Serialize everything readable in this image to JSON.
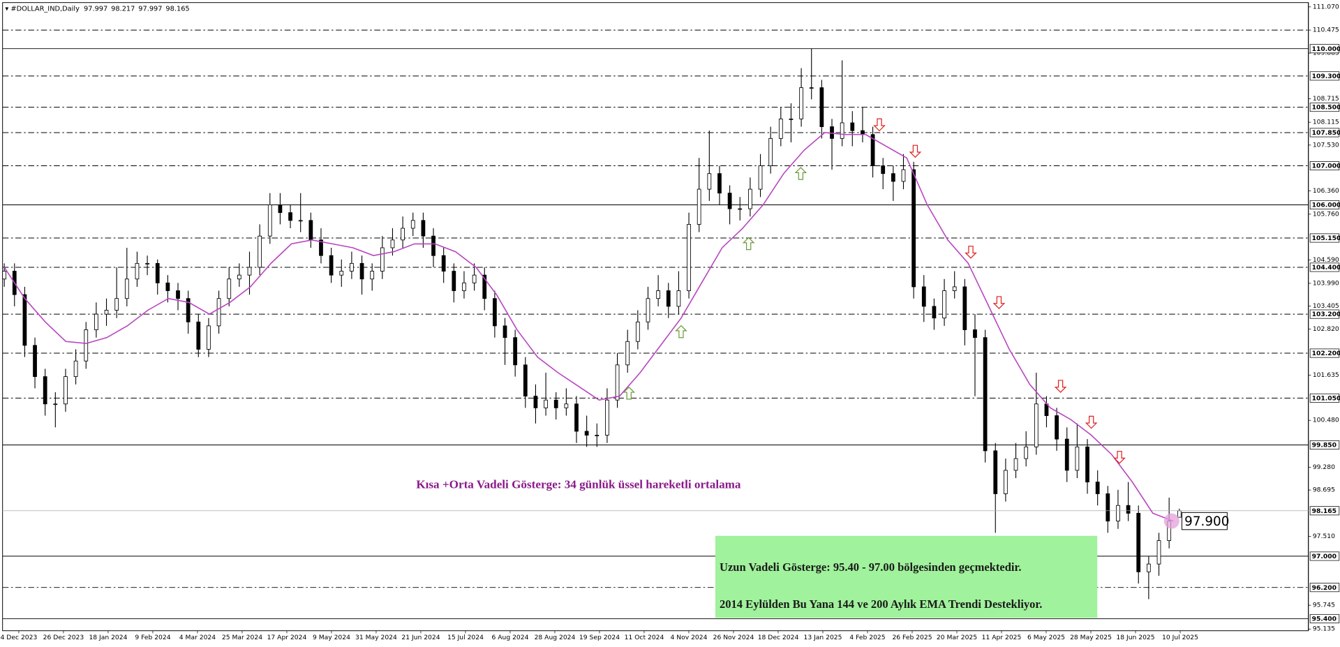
{
  "symbol": "#DOLLAR_IND,Daily",
  "chart_data": {
    "type": "candlestick",
    "ylim": [
      95.135,
      111.07
    ],
    "yticks": [
      {
        "value": 111.07,
        "label": "111.070"
      },
      110.475,
      109.885,
      108.715,
      108.115,
      {
        "value": 107.53,
        "label": "107.530"
      },
      {
        "value": 106.36,
        "label": "106.360"
      },
      {
        "value": 105.76,
        "label": "105.760"
      },
      {
        "value": 104.59,
        "label": "104.590"
      },
      {
        "value": 103.99,
        "label": "103.990"
      },
      103.405,
      {
        "value": 102.82,
        "label": "102.820"
      },
      101.635,
      {
        "value": 100.48,
        "label": "100.480"
      },
      {
        "value": 99.28,
        "label": "99.280"
      },
      98.695,
      {
        "value": 97.51,
        "label": "97.510"
      },
      95.745,
      95.135
    ],
    "levels": [
      {
        "value": 110.475,
        "style": "dashed"
      },
      {
        "value": 110,
        "label": "110.000",
        "style": "solid"
      },
      {
        "value": 109.3,
        "label": "109.300",
        "style": "dashed"
      },
      {
        "value": 108.5,
        "label": "108.500",
        "style": "dashed"
      },
      {
        "value": 107.85,
        "label": "107.850",
        "style": "dashed"
      },
      {
        "value": 107,
        "label": "107.000",
        "style": "dashed"
      },
      {
        "value": 106,
        "label": "106.000",
        "style": "solid"
      },
      {
        "value": 105.15,
        "label": "105.150",
        "style": "dashed"
      },
      {
        "value": 104.4,
        "label": "104.400",
        "style": "dashed"
      },
      {
        "value": 103.2,
        "label": "103.200",
        "style": "dashed"
      },
      {
        "value": 102.2,
        "label": "102.200",
        "style": "dashed"
      },
      {
        "value": 101.05,
        "label": "101.050",
        "style": "dashed"
      },
      {
        "value": 99.85,
        "label": "99.850",
        "style": "solid"
      },
      {
        "value": 97,
        "label": "97.000",
        "style": "solid"
      },
      {
        "value": 96.2,
        "label": "96.200",
        "style": "dashed"
      },
      {
        "value": 95.4,
        "label": "95.400",
        "style": "solid"
      }
    ],
    "x_labels": [
      "4 Dec 2023",
      "26 Dec 2023",
      "18 Jan 2024",
      "9 Feb 2024",
      "4 Mar 2024",
      "25 Mar 2024",
      "17 Apr 2024",
      "9 May 2024",
      "31 May 2024",
      "21 Jun 2024",
      "15 Jul 2024",
      "6 Aug 2024",
      "28 Aug 2024",
      "19 Sep 2024",
      "11 Oct 2024",
      "4 Nov 2024",
      "26 Nov 2024",
      "18 Dec 2024",
      "13 Jan 2025",
      "4 Feb 2025",
      "26 Feb 2025",
      "20 Mar 2025",
      "11 Apr 2025",
      "6 May 2025",
      "28 May 2025",
      "18 Jun 2025",
      "10 Jul 2025"
    ],
    "up_color": "#ffffff",
    "down_color": "#000000",
    "candles": [
      [
        104.1,
        104.5,
        103.9,
        104.3
      ],
      [
        104.3,
        104.5,
        103.4,
        103.7
      ],
      [
        103.7,
        103.9,
        102.1,
        102.4
      ],
      [
        102.4,
        102.6,
        101.3,
        101.6
      ],
      [
        101.6,
        101.8,
        100.6,
        100.9
      ],
      [
        100.9,
        101.2,
        100.3,
        100.9
      ],
      [
        100.9,
        101.8,
        100.7,
        101.6
      ],
      [
        101.6,
        102.3,
        101.4,
        102.0
      ],
      [
        102.0,
        103.0,
        101.8,
        102.8
      ],
      [
        102.8,
        103.5,
        102.6,
        103.2
      ],
      [
        103.2,
        103.6,
        102.9,
        103.3
      ],
      [
        103.3,
        104.4,
        103.1,
        103.6
      ],
      [
        103.6,
        104.9,
        103.4,
        104.1
      ],
      [
        104.1,
        104.8,
        103.9,
        104.5
      ],
      [
        104.5,
        104.7,
        104.2,
        104.5
      ],
      [
        104.5,
        104.6,
        103.7,
        104.0
      ],
      [
        104.0,
        104.2,
        103.5,
        103.8
      ],
      [
        103.8,
        104.0,
        103.3,
        103.6
      ],
      [
        103.6,
        103.8,
        102.7,
        103.0
      ],
      [
        103.0,
        103.2,
        102.1,
        102.3
      ],
      [
        102.3,
        103.1,
        102.1,
        102.9
      ],
      [
        102.9,
        103.8,
        102.7,
        103.6
      ],
      [
        103.6,
        104.4,
        103.4,
        104.1
      ],
      [
        104.1,
        104.5,
        103.9,
        104.2
      ],
      [
        104.2,
        104.8,
        103.7,
        104.4
      ],
      [
        104.4,
        105.5,
        104.2,
        105.2
      ],
      [
        105.2,
        106.3,
        105.0,
        106.0
      ],
      [
        106.0,
        106.3,
        105.5,
        105.8
      ],
      [
        105.8,
        106.0,
        105.4,
        105.6
      ],
      [
        105.6,
        106.3,
        105.3,
        105.6
      ],
      [
        105.6,
        105.8,
        104.9,
        105.1
      ],
      [
        105.1,
        105.4,
        104.5,
        104.7
      ],
      [
        104.7,
        104.9,
        104.0,
        104.2
      ],
      [
        104.2,
        104.6,
        103.9,
        104.3
      ],
      [
        104.3,
        104.8,
        104.1,
        104.5
      ],
      [
        104.5,
        104.7,
        103.7,
        104.1
      ],
      [
        104.1,
        104.5,
        103.8,
        104.3
      ],
      [
        104.3,
        105.2,
        104.1,
        104.9
      ],
      [
        104.9,
        105.4,
        104.7,
        105.1
      ],
      [
        105.1,
        105.7,
        104.9,
        105.4
      ],
      [
        105.4,
        105.8,
        105.2,
        105.6
      ],
      [
        105.6,
        105.8,
        104.9,
        105.2
      ],
      [
        105.2,
        105.4,
        104.4,
        104.7
      ],
      [
        104.7,
        104.9,
        104.0,
        104.3
      ],
      [
        104.3,
        104.5,
        103.5,
        103.8
      ],
      [
        103.8,
        104.3,
        103.6,
        104.0
      ],
      [
        104.0,
        104.5,
        103.8,
        104.2
      ],
      [
        104.2,
        104.4,
        103.3,
        103.6
      ],
      [
        103.6,
        103.8,
        102.6,
        102.9
      ],
      [
        102.9,
        103.1,
        101.9,
        102.6
      ],
      [
        102.6,
        102.8,
        101.6,
        101.9
      ],
      [
        101.9,
        102.1,
        100.8,
        101.1
      ],
      [
        101.1,
        101.4,
        100.4,
        100.8
      ],
      [
        100.8,
        101.7,
        100.6,
        101.0
      ],
      [
        101.0,
        101.2,
        100.5,
        100.8
      ],
      [
        100.8,
        101.3,
        100.6,
        100.9
      ],
      [
        100.9,
        101.1,
        99.9,
        100.2
      ],
      [
        100.2,
        100.6,
        99.8,
        100.1
      ],
      [
        100.1,
        100.4,
        99.8,
        100.1
      ],
      [
        100.1,
        101.3,
        99.9,
        101.0
      ],
      [
        101.0,
        102.2,
        100.8,
        101.9
      ],
      [
        101.9,
        102.8,
        101.7,
        102.5
      ],
      [
        102.5,
        103.3,
        102.3,
        103.0
      ],
      [
        103.0,
        103.9,
        102.8,
        103.6
      ],
      [
        103.6,
        104.2,
        103.4,
        103.8
      ],
      [
        103.8,
        104.0,
        103.1,
        103.4
      ],
      [
        103.4,
        104.3,
        103.2,
        103.8
      ],
      [
        103.8,
        105.8,
        103.6,
        105.5
      ],
      [
        105.5,
        107.2,
        105.3,
        106.4
      ],
      [
        106.4,
        107.9,
        106.1,
        106.8
      ],
      [
        106.8,
        107.0,
        106.0,
        106.3
      ],
      [
        106.3,
        106.5,
        105.5,
        105.9
      ],
      [
        105.9,
        106.2,
        105.6,
        105.9
      ],
      [
        105.9,
        106.7,
        105.7,
        106.4
      ],
      [
        106.4,
        107.3,
        106.2,
        107.0
      ],
      [
        107.0,
        108.0,
        106.8,
        107.7
      ],
      [
        107.7,
        108.5,
        107.5,
        108.2
      ],
      [
        108.2,
        108.6,
        107.6,
        108.2
      ],
      [
        108.2,
        109.5,
        108.0,
        109.0
      ],
      [
        109.0,
        110.0,
        108.7,
        109.0
      ],
      [
        109.0,
        109.2,
        107.7,
        108.0
      ],
      [
        108.0,
        108.2,
        106.9,
        107.7
      ],
      [
        107.7,
        109.7,
        107.5,
        108.1
      ],
      [
        108.1,
        108.4,
        107.5,
        107.9
      ],
      [
        107.9,
        108.5,
        107.6,
        107.8
      ],
      [
        107.8,
        108.0,
        106.7,
        107.0
      ],
      [
        107.0,
        107.2,
        106.4,
        106.8
      ],
      [
        106.8,
        107.0,
        106.1,
        106.6
      ],
      [
        106.6,
        107.3,
        106.4,
        106.9
      ],
      [
        106.9,
        107.1,
        103.6,
        103.9
      ],
      [
        103.9,
        104.2,
        103.0,
        103.4
      ],
      [
        103.4,
        103.6,
        102.8,
        103.1
      ],
      [
        103.1,
        104.1,
        102.9,
        103.8
      ],
      [
        103.8,
        104.3,
        103.6,
        103.9
      ],
      [
        103.9,
        104.1,
        102.4,
        102.8
      ],
      [
        102.8,
        103.2,
        101.1,
        102.6
      ],
      [
        102.6,
        102.8,
        99.4,
        99.7
      ],
      [
        99.7,
        99.9,
        97.6,
        98.6
      ],
      [
        98.6,
        99.5,
        98.4,
        99.2
      ],
      [
        99.2,
        99.9,
        99.0,
        99.5
      ],
      [
        99.5,
        100.2,
        99.3,
        99.8
      ],
      [
        99.8,
        101.7,
        99.6,
        100.9
      ],
      [
        100.9,
        101.1,
        100.3,
        100.6
      ],
      [
        100.6,
        100.8,
        99.7,
        100.0
      ],
      [
        100.0,
        100.3,
        98.9,
        99.2
      ],
      [
        99.2,
        100.4,
        99.0,
        99.8
      ],
      [
        99.8,
        100.0,
        98.6,
        98.9
      ],
      [
        98.9,
        99.2,
        98.3,
        98.6
      ],
      [
        98.6,
        98.8,
        97.6,
        97.9
      ],
      [
        97.9,
        98.7,
        97.7,
        98.3
      ],
      [
        98.3,
        98.9,
        97.9,
        98.1
      ],
      [
        98.1,
        98.3,
        96.3,
        96.6
      ],
      [
        96.6,
        97.0,
        95.9,
        96.8
      ],
      [
        96.8,
        97.6,
        96.5,
        97.4
      ],
      [
        97.4,
        98.5,
        97.2,
        97.9
      ],
      [
        97.997,
        98.217,
        97.997,
        98.165
      ]
    ],
    "ema": {
      "color": "#b845c0",
      "values": [
        104.4,
        103.6,
        103.0,
        102.5,
        102.45,
        102.6,
        102.9,
        103.3,
        103.6,
        103.5,
        103.2,
        103.5,
        103.9,
        104.5,
        105.0,
        105.1,
        105.0,
        104.9,
        104.7,
        104.8,
        105.0,
        105.0,
        104.8,
        104.4,
        103.7,
        102.8,
        102.1,
        101.7,
        101.35,
        101.0,
        101.1,
        101.7,
        102.4,
        103.1,
        104.0,
        104.9,
        105.4,
        106.0,
        106.8,
        107.4,
        107.85,
        107.8,
        107.8,
        107.5,
        107.2,
        106.0,
        105.1,
        104.5,
        103.4,
        102.3,
        101.4,
        100.8,
        100.5,
        100.1,
        99.6,
        98.9,
        98.1,
        97.9
      ]
    },
    "marker": {
      "value": 97.9,
      "label": "97.900"
    },
    "ema_note": "Kısa +Orta Vadeli Gösterge: 34 günlük üssel hareketli ortalama",
    "long_term_note": [
      "Uzun Vadeli Gösterge: 95.40 - 97.00 bölgesinden geçmektedir.",
      "2014 Eylülden Bu Yana 144 ve 200 Aylık EMA Trendi Destekliyor."
    ]
  }
}
